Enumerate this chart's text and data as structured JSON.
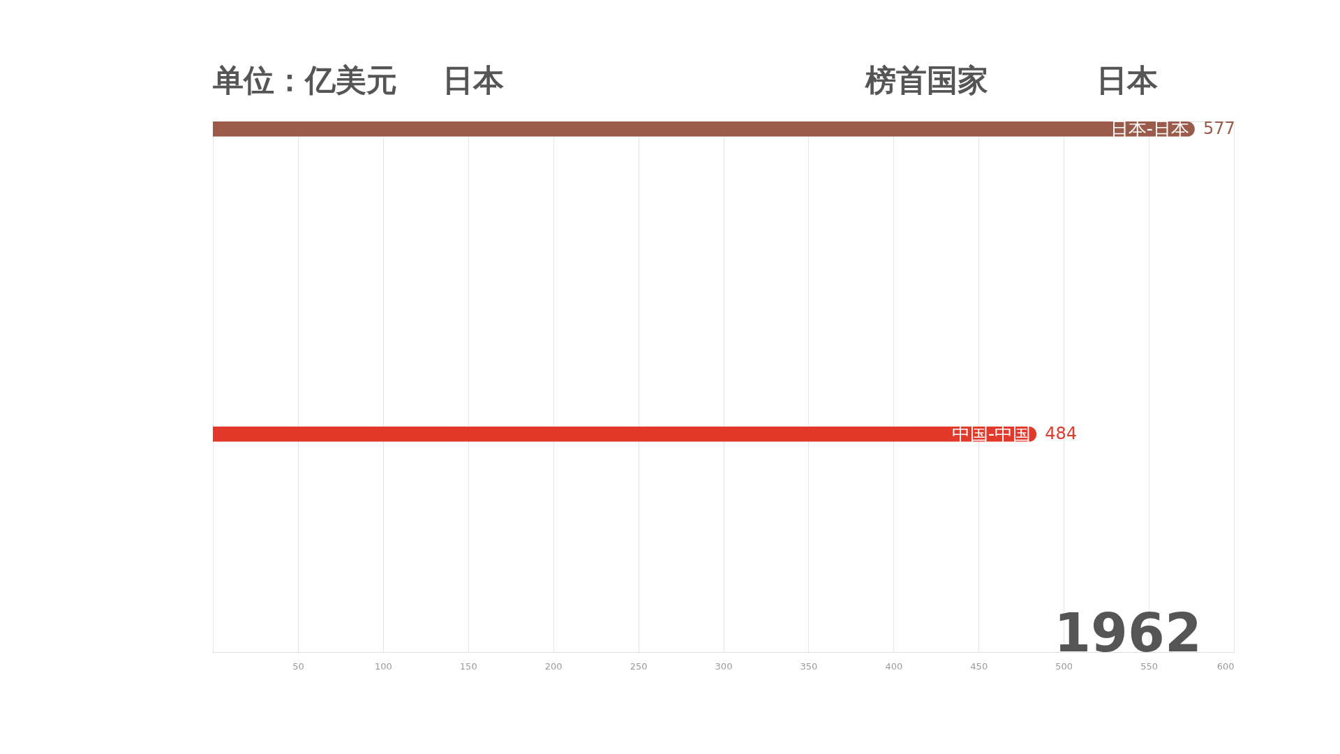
{
  "chart_data": {
    "type": "bar",
    "orientation": "horizontal",
    "categories": [
      "日本-日本",
      "中国-中国"
    ],
    "values": [
      577,
      484
    ],
    "colors": [
      "#9b5b4a",
      "#e2392b"
    ],
    "xlim": [
      0,
      600
    ],
    "xticks": [
      {
        "value": 0,
        "label": null
      },
      50,
      100,
      150,
      200,
      250,
      300,
      350,
      400,
      450,
      500,
      550,
      600
    ],
    "grid": "x",
    "tick_labels": "x",
    "data_labels": true,
    "annotations": [
      "单位：亿美元",
      "日本",
      "榜首国家",
      "日本",
      "1962"
    ]
  }
}
